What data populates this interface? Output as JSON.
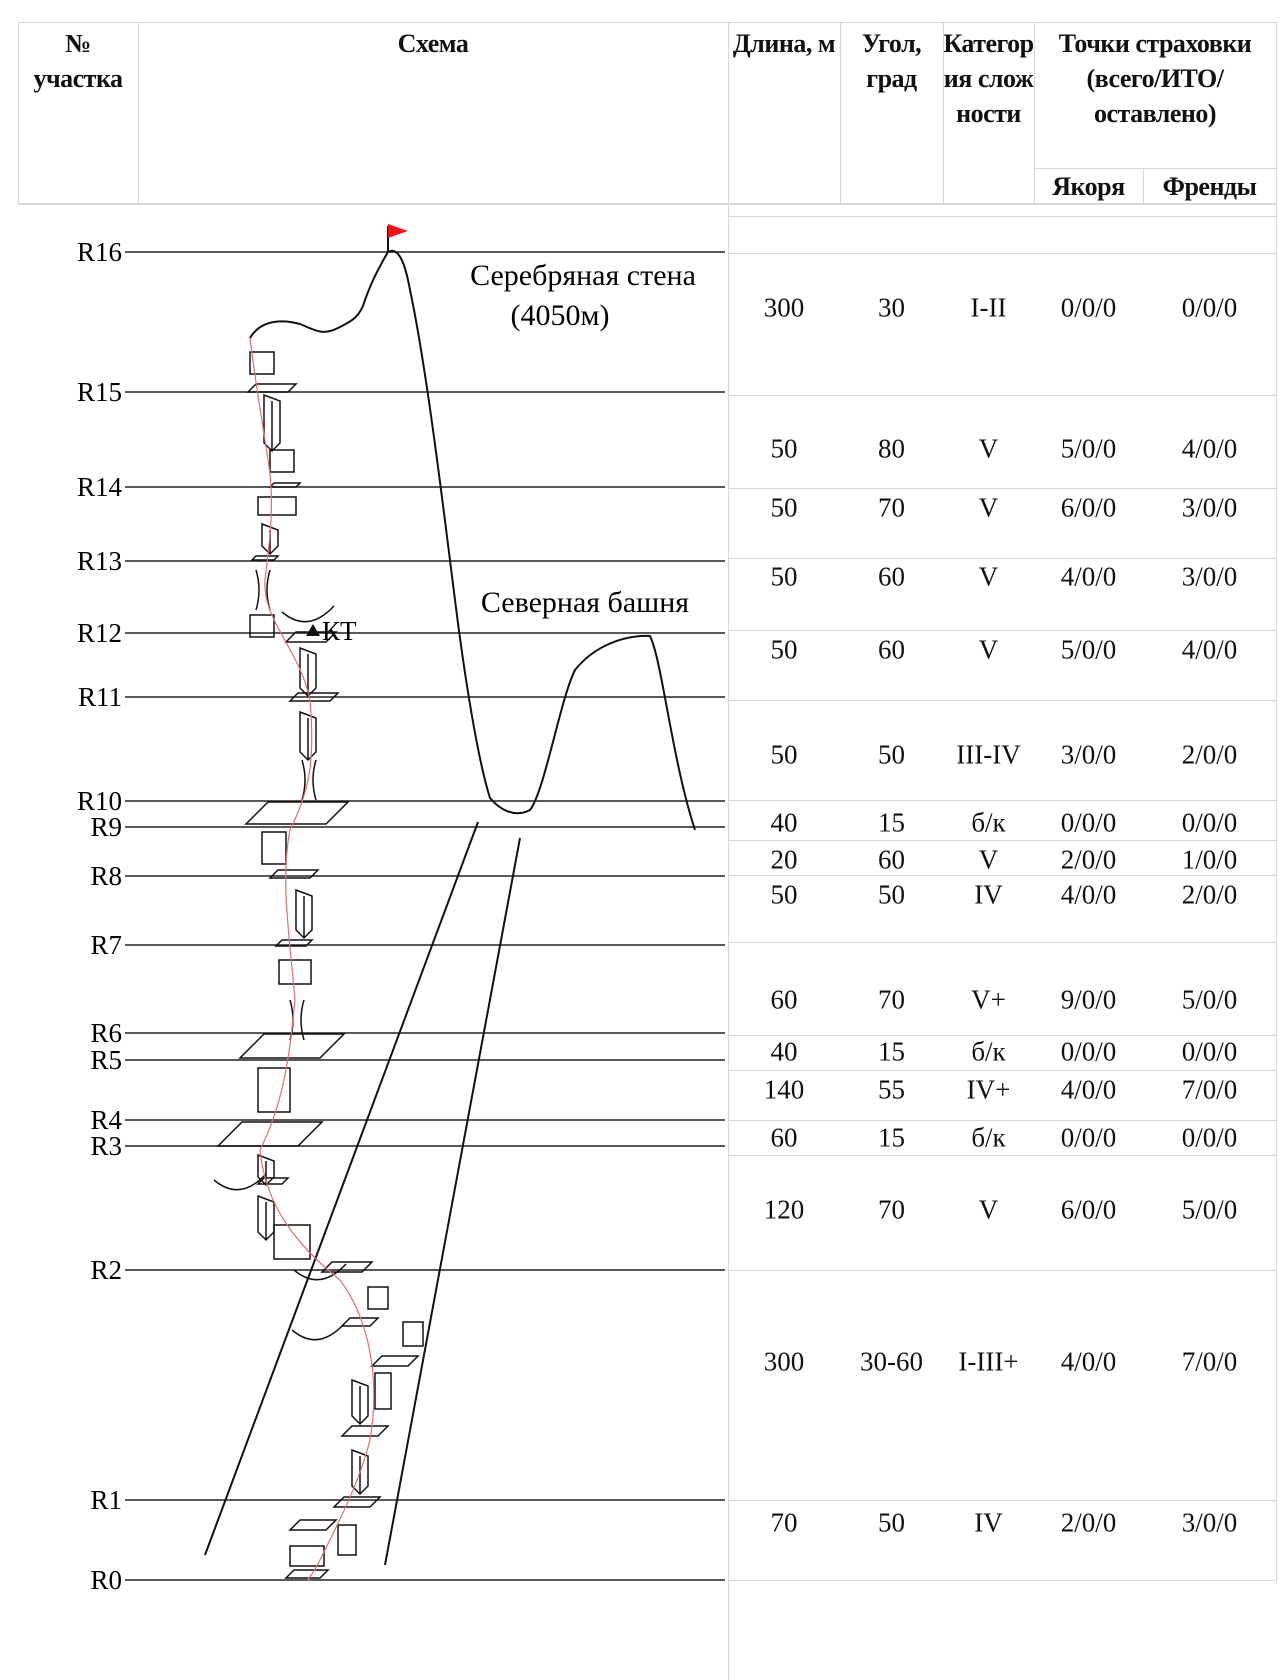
{
  "header": {
    "section_no": "№ участка",
    "scheme": "Схема",
    "length": "Длина, м",
    "angle": "Угол, град",
    "category": "Категория сложности",
    "protection": "Точки страховки (всего/ИТО/оставлено)",
    "anchors": "Якоря",
    "friends": "Френды"
  },
  "diagram": {
    "peak_label": "Серебряная стена",
    "peak_altitude": "(4050м)",
    "tower_label": "Северная башня",
    "control_point": "КТ",
    "flag_color": "#e8161b",
    "route_color": "#e07070",
    "sections": [
      "R16",
      "R15",
      "R14",
      "R13",
      "R12",
      "R11",
      "R10",
      "R9",
      "R8",
      "R7",
      "R6",
      "R5",
      "R4",
      "R3",
      "R2",
      "R1",
      "R0"
    ]
  },
  "rows": [
    {
      "length": "300",
      "angle": "30",
      "category": "I-II",
      "anchors": "0/0/0",
      "friends": "0/0/0"
    },
    {
      "length": "50",
      "angle": "80",
      "category": "V",
      "anchors": "5/0/0",
      "friends": "4/0/0"
    },
    {
      "length": "50",
      "angle": "70",
      "category": "V",
      "anchors": "6/0/0",
      "friends": "3/0/0"
    },
    {
      "length": "50",
      "angle": "60",
      "category": "V",
      "anchors": "4/0/0",
      "friends": "3/0/0"
    },
    {
      "length": "50",
      "angle": "60",
      "category": "V",
      "anchors": "5/0/0",
      "friends": "4/0/0"
    },
    {
      "length": "50",
      "angle": "50",
      "category": "III-IV",
      "anchors": "3/0/0",
      "friends": "2/0/0"
    },
    {
      "length": "40",
      "angle": "15",
      "category": "б/к",
      "anchors": "0/0/0",
      "friends": "0/0/0"
    },
    {
      "length": "20",
      "angle": "60",
      "category": "V",
      "anchors": "2/0/0",
      "friends": "1/0/0"
    },
    {
      "length": "50",
      "angle": "50",
      "category": "IV",
      "anchors": "4/0/0",
      "friends": "2/0/0"
    },
    {
      "length": "60",
      "angle": "70",
      "category": "V+",
      "anchors": "9/0/0",
      "friends": "5/0/0"
    },
    {
      "length": "40",
      "angle": "15",
      "category": "б/к",
      "anchors": "0/0/0",
      "friends": "0/0/0"
    },
    {
      "length": "140",
      "angle": "55",
      "category": "IV+",
      "anchors": "4/0/0",
      "friends": "7/0/0"
    },
    {
      "length": "60",
      "angle": "15",
      "category": "б/к",
      "anchors": "0/0/0",
      "friends": "0/0/0"
    },
    {
      "length": "120",
      "angle": "70",
      "category": "V",
      "anchors": "6/0/0",
      "friends": "5/0/0"
    },
    {
      "length": "300",
      "angle": "30-60",
      "category": "I-III+",
      "anchors": "4/0/0",
      "friends": "7/0/0"
    },
    {
      "length": "70",
      "angle": "50",
      "category": "IV",
      "anchors": "2/0/0",
      "friends": "3/0/0"
    }
  ]
}
